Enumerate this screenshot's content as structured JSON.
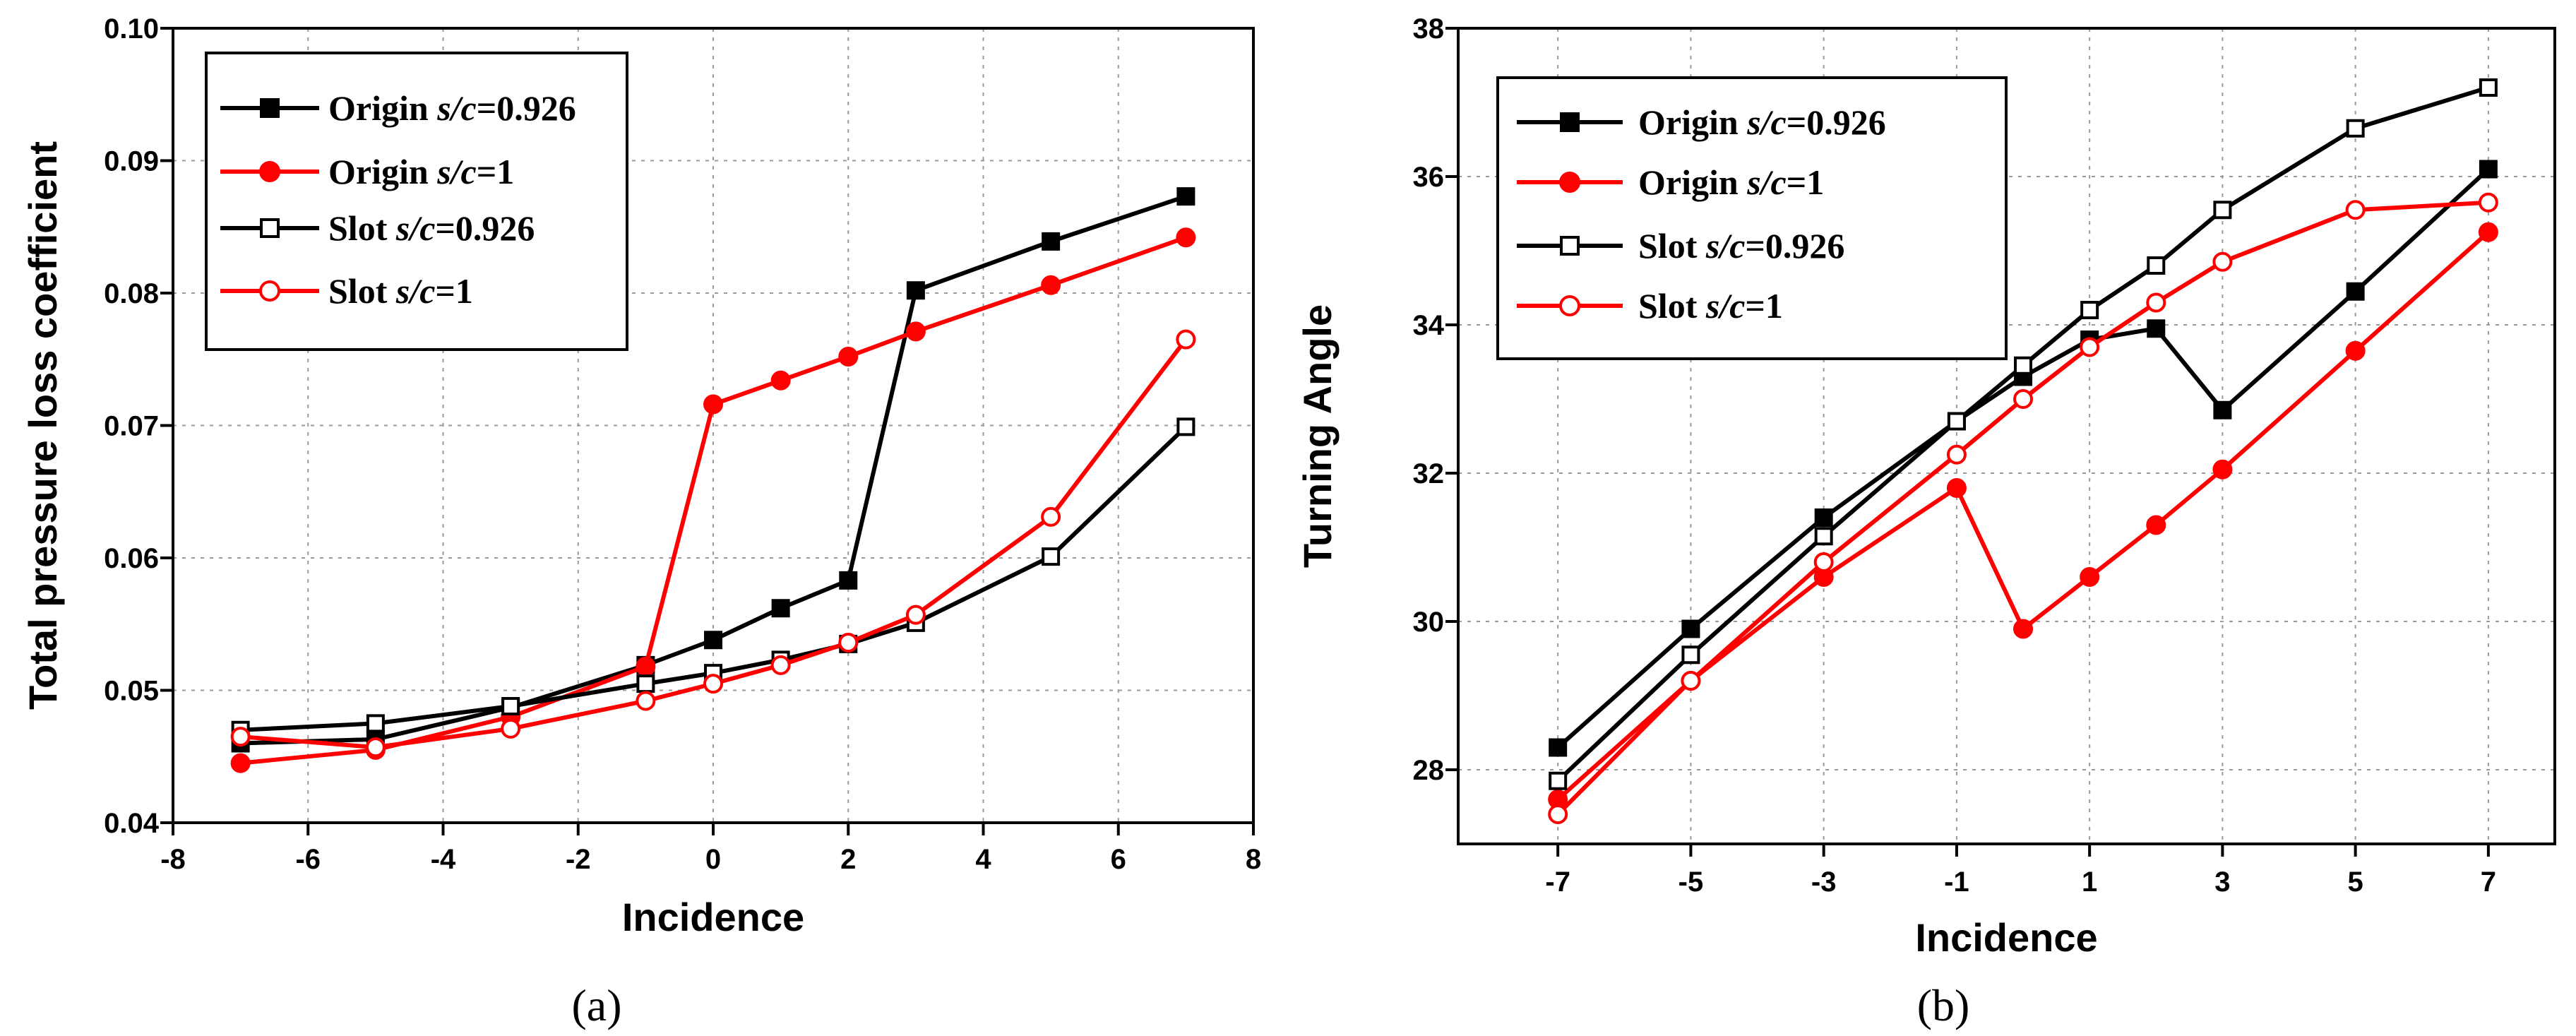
{
  "chart_data": [
    {
      "type": "line",
      "caption": "(a)",
      "xlabel": "Incidence",
      "ylabel": "Total pressure loss coefficient",
      "xlim": [
        -8,
        8
      ],
      "ylim": [
        0.04,
        0.1
      ],
      "xticks": [
        -8,
        -6,
        -4,
        -2,
        0,
        2,
        4,
        6,
        8
      ],
      "xtick_labels": [
        "-8",
        "-6",
        "-4",
        "-2",
        "0",
        "2",
        "4",
        "6",
        "8"
      ],
      "yticks": [
        0.04,
        0.05,
        0.06,
        0.07,
        0.08,
        0.09,
        0.1
      ],
      "ytick_labels": [
        "0.04",
        "0.05",
        "0.06",
        "0.07",
        "0.08",
        "0.09",
        "0.10"
      ],
      "grid": true,
      "legend_position": "top-left",
      "series": [
        {
          "name": "Origin",
          "name_italic": "s/c",
          "name_value": "=0.926",
          "color": "#000000",
          "marker": "square-filled",
          "x": [
            -7,
            -5,
            -3,
            -1,
            0,
            1,
            2,
            3,
            5,
            7
          ],
          "y": [
            0.046,
            0.0463,
            0.0487,
            0.0519,
            0.0538,
            0.0562,
            0.0583,
            0.0802,
            0.0839,
            0.0873
          ]
        },
        {
          "name": "Origin",
          "name_italic": "s/c",
          "name_value": "=1",
          "color": "#ff0000",
          "marker": "circle-filled",
          "x": [
            -7,
            -5,
            -3,
            -1,
            0,
            1,
            2,
            3,
            5,
            7
          ],
          "y": [
            0.0445,
            0.0455,
            0.048,
            0.0518,
            0.0716,
            0.0734,
            0.0752,
            0.0771,
            0.0806,
            0.0842
          ]
        },
        {
          "name": "Slot",
          "name_italic": "s/c",
          "name_value": "=0.926",
          "color": "#000000",
          "marker": "square-open",
          "x": [
            -7,
            -5,
            -3,
            -1,
            0,
            1,
            2,
            3,
            5,
            7
          ],
          "y": [
            0.047,
            0.0475,
            0.0488,
            0.0505,
            0.0513,
            0.0523,
            0.0535,
            0.0551,
            0.0601,
            0.0699
          ]
        },
        {
          "name": "Slot",
          "name_italic": "s/c",
          "name_value": "=1",
          "color": "#ff0000",
          "marker": "circle-open",
          "x": [
            -7,
            -5,
            -3,
            -1,
            0,
            1,
            2,
            3,
            5,
            7
          ],
          "y": [
            0.0465,
            0.0457,
            0.0471,
            0.0492,
            0.0505,
            0.0519,
            0.0536,
            0.0557,
            0.0631,
            0.0765
          ]
        }
      ]
    },
    {
      "type": "line",
      "caption": "(b)",
      "xlabel": "Incidence",
      "ylabel": "Turning Angle",
      "xlim": [
        -8.5,
        8
      ],
      "ylim": [
        27,
        38
      ],
      "xticks": [
        -7,
        -5,
        -3,
        -1,
        1,
        3,
        5,
        7
      ],
      "xtick_labels": [
        "-7",
        "-5",
        "-3",
        "-1",
        "1",
        "3",
        "5",
        "7"
      ],
      "yticks": [
        28,
        30,
        32,
        34,
        36,
        38
      ],
      "ytick_labels": [
        "28",
        "30",
        "32",
        "34",
        "36",
        "38"
      ],
      "grid": true,
      "legend_position": "top-left",
      "series": [
        {
          "name": "Origin",
          "name_italic": "s/c",
          "name_value": "=0.926",
          "color": "#000000",
          "marker": "square-filled",
          "x": [
            -7,
            -5,
            -3,
            -1,
            0,
            1,
            2,
            3,
            5,
            7
          ],
          "y": [
            28.3,
            29.9,
            31.4,
            32.7,
            33.3,
            33.8,
            33.95,
            32.85,
            34.45,
            36.1
          ]
        },
        {
          "name": "Origin",
          "name_italic": "s/c",
          "name_value": "=1",
          "color": "#ff0000",
          "marker": "circle-filled",
          "x": [
            -7,
            -5,
            -3,
            -1,
            0,
            1,
            2,
            3,
            5,
            7
          ],
          "y": [
            27.6,
            29.2,
            30.6,
            31.8,
            29.9,
            30.6,
            31.3,
            32.05,
            33.65,
            35.25
          ]
        },
        {
          "name": "Slot",
          "name_italic": "s/c",
          "name_value": "=0.926",
          "color": "#000000",
          "marker": "square-open",
          "x": [
            -7,
            -5,
            -3,
            -1,
            0,
            1,
            2,
            3,
            5,
            7
          ],
          "y": [
            27.85,
            29.55,
            31.15,
            32.7,
            33.45,
            34.2,
            34.8,
            35.55,
            36.65,
            37.2
          ]
        },
        {
          "name": "Slot",
          "name_italic": "s/c",
          "name_value": "=1",
          "color": "#ff0000",
          "marker": "circle-open",
          "x": [
            -7,
            -5,
            -3,
            -1,
            0,
            1,
            2,
            3,
            5,
            7
          ],
          "y": [
            27.4,
            29.2,
            30.8,
            32.25,
            33.0,
            33.7,
            34.3,
            34.85,
            35.55,
            35.65
          ]
        }
      ]
    }
  ]
}
